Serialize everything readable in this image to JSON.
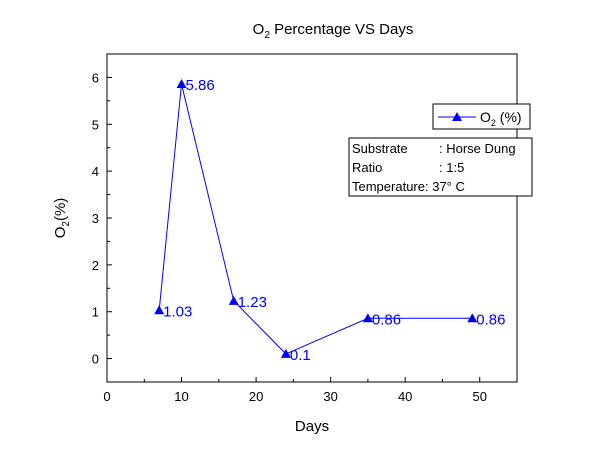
{
  "chart_data": {
    "type": "line",
    "title": {
      "base": "O",
      "sub": "2",
      "rest": " Percentage VS Days"
    },
    "xlabel": "Days",
    "ylabel": {
      "base": "O",
      "sub": "2",
      "rest": "(%)"
    },
    "xlim": [
      0,
      55
    ],
    "ylim": [
      -0.5,
      6.5
    ],
    "xticks": [
      0,
      10,
      20,
      30,
      40,
      50
    ],
    "yticks": [
      0,
      1,
      2,
      3,
      4,
      5,
      6
    ],
    "grid": false,
    "legend_position": "top-right",
    "series": [
      {
        "name": {
          "base": "O",
          "sub": "2",
          "rest": " (%)"
        },
        "color": "#0000ff",
        "marker": "triangle",
        "x": [
          7,
          10,
          17,
          24,
          35,
          49
        ],
        "y": [
          1.03,
          5.86,
          1.23,
          0.1,
          0.86,
          0.86
        ],
        "labels": [
          "1.03",
          "5.86",
          "1.23",
          "0.1",
          "0.86",
          "0.86"
        ]
      }
    ],
    "info_box": [
      {
        "label": "Substrate",
        "value": ": Horse Dung"
      },
      {
        "label": "Ratio",
        "value": ": 1:5"
      },
      {
        "label": "Temperature",
        "value": ": 37° C"
      }
    ]
  }
}
